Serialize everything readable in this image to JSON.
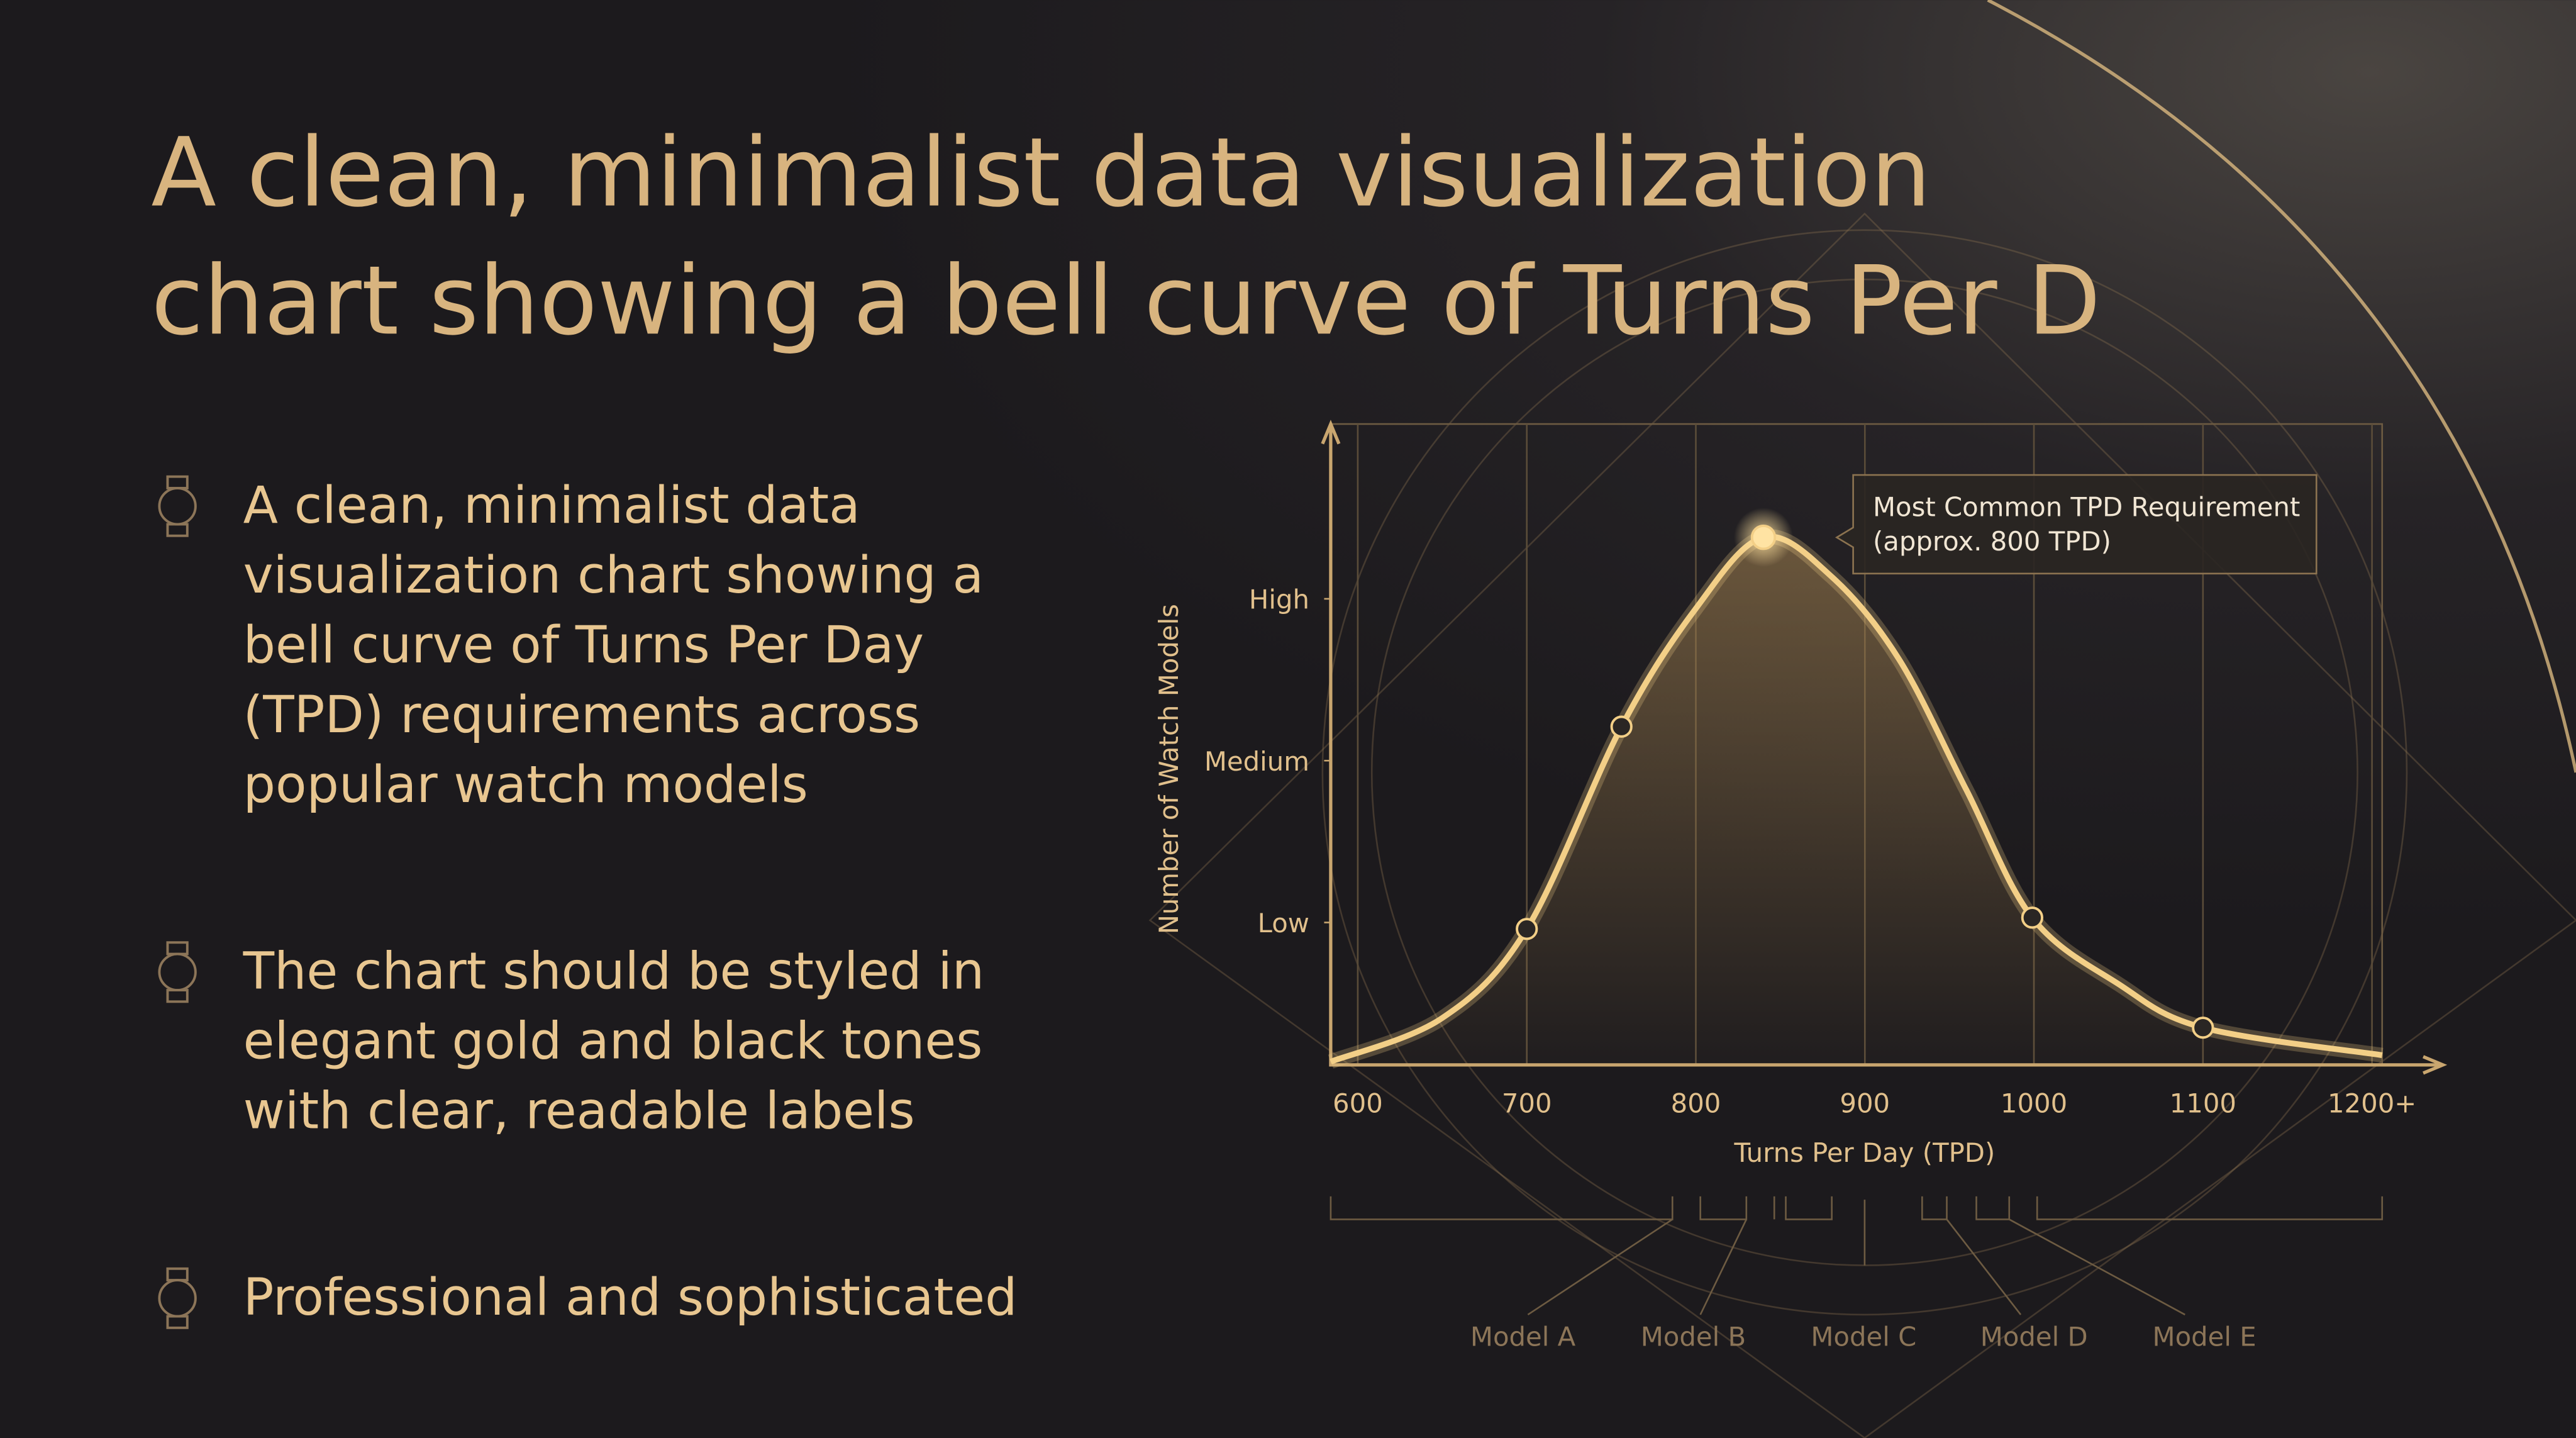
{
  "title": [
    "A clean, minimalist data visualization",
    "chart showing a bell curve of Turns Per D"
  ],
  "bullets": [
    [
      "A clean, minimalist data",
      "visualization chart showing a",
      "bell curve of Turns Per Day",
      "(TPD) requirements across",
      "popular watch models"
    ],
    [
      "The chart should be styled in",
      "elegant gold and black tones",
      "with clear, readable labels"
    ],
    [
      "Professional and sophisticated"
    ]
  ],
  "chart_data": {
    "type": "line",
    "xlabel": "Turns Per Day (TPD)",
    "ylabel": "Number of Watch Models",
    "x": [
      584,
      650,
      700,
      756,
      800,
      840,
      880,
      920,
      960,
      999,
      1050,
      1100,
      1206
    ],
    "values": [
      0.14,
      0.41,
      0.96,
      2.21,
      2.94,
      3.38,
      3.14,
      2.63,
      1.82,
      1.03,
      0.62,
      0.35,
      0.18
    ],
    "points": {
      "x": [
        700,
        756,
        840,
        999,
        1100
      ],
      "values": [
        0.96,
        2.21,
        3.38,
        1.03,
        0.35
      ]
    },
    "highlight_index": 2,
    "color": "#f3cf87",
    "xlim": [
      584,
      1206
    ],
    "ylim": [
      0.12,
      4.08
    ],
    "xticks": [
      600,
      700,
      800,
      900,
      1000,
      1100,
      {
        "value": 1200,
        "label": "1200+"
      }
    ],
    "yticks": [
      {
        "value": 1,
        "label": "Low"
      },
      {
        "value": 2,
        "label": "Medium"
      },
      {
        "value": 3,
        "label": "High"
      }
    ],
    "grid": true,
    "annotation": [
      "Most Common TPD Requirement",
      "(approx. 800 TPD)"
    ],
    "models": [
      "Model A",
      "Model B",
      "Model C",
      "Model D",
      "Model E"
    ]
  }
}
